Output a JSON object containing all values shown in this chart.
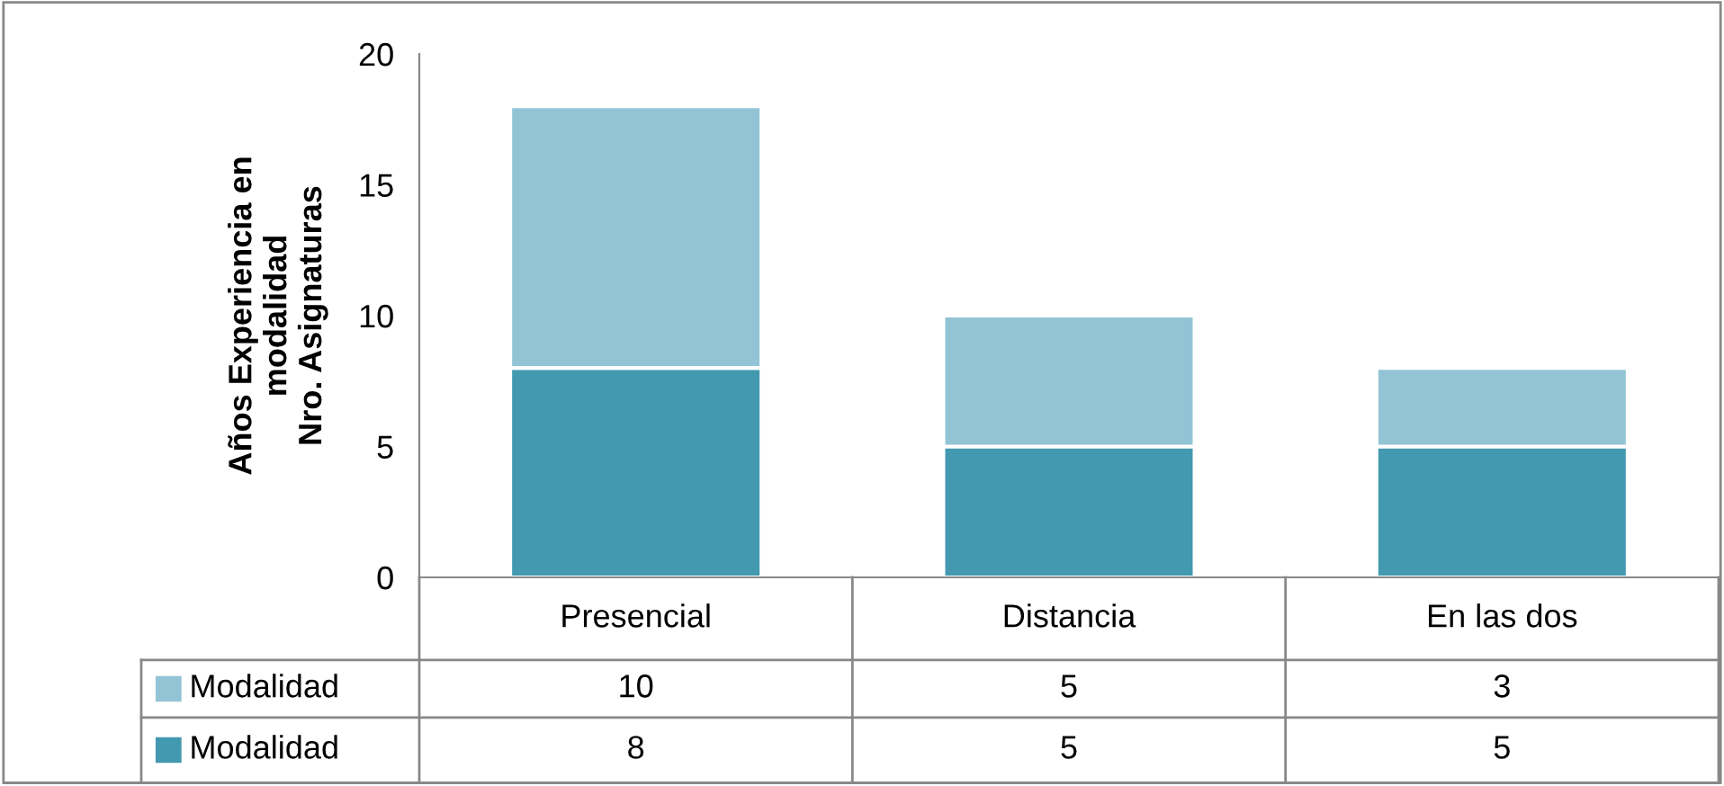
{
  "chart_data": {
    "type": "bar",
    "stacked": true,
    "ylabel": "Años Experiencia en\nmodalidad\nNro. Asignaturas",
    "categories": [
      "Presencial",
      "Distancia",
      "En las dos"
    ],
    "series": [
      {
        "name": "Modalidad",
        "color": "#4299b0",
        "values": [
          8,
          5,
          5
        ]
      },
      {
        "name": "Modalidad",
        "color": "#93c4d6",
        "values": [
          10,
          5,
          3
        ]
      }
    ],
    "ylim": [
      0,
      20
    ],
    "yticks": [
      0,
      5,
      10,
      15,
      20
    ],
    "grid": false,
    "data_labels": true,
    "legend": "bottom"
  }
}
